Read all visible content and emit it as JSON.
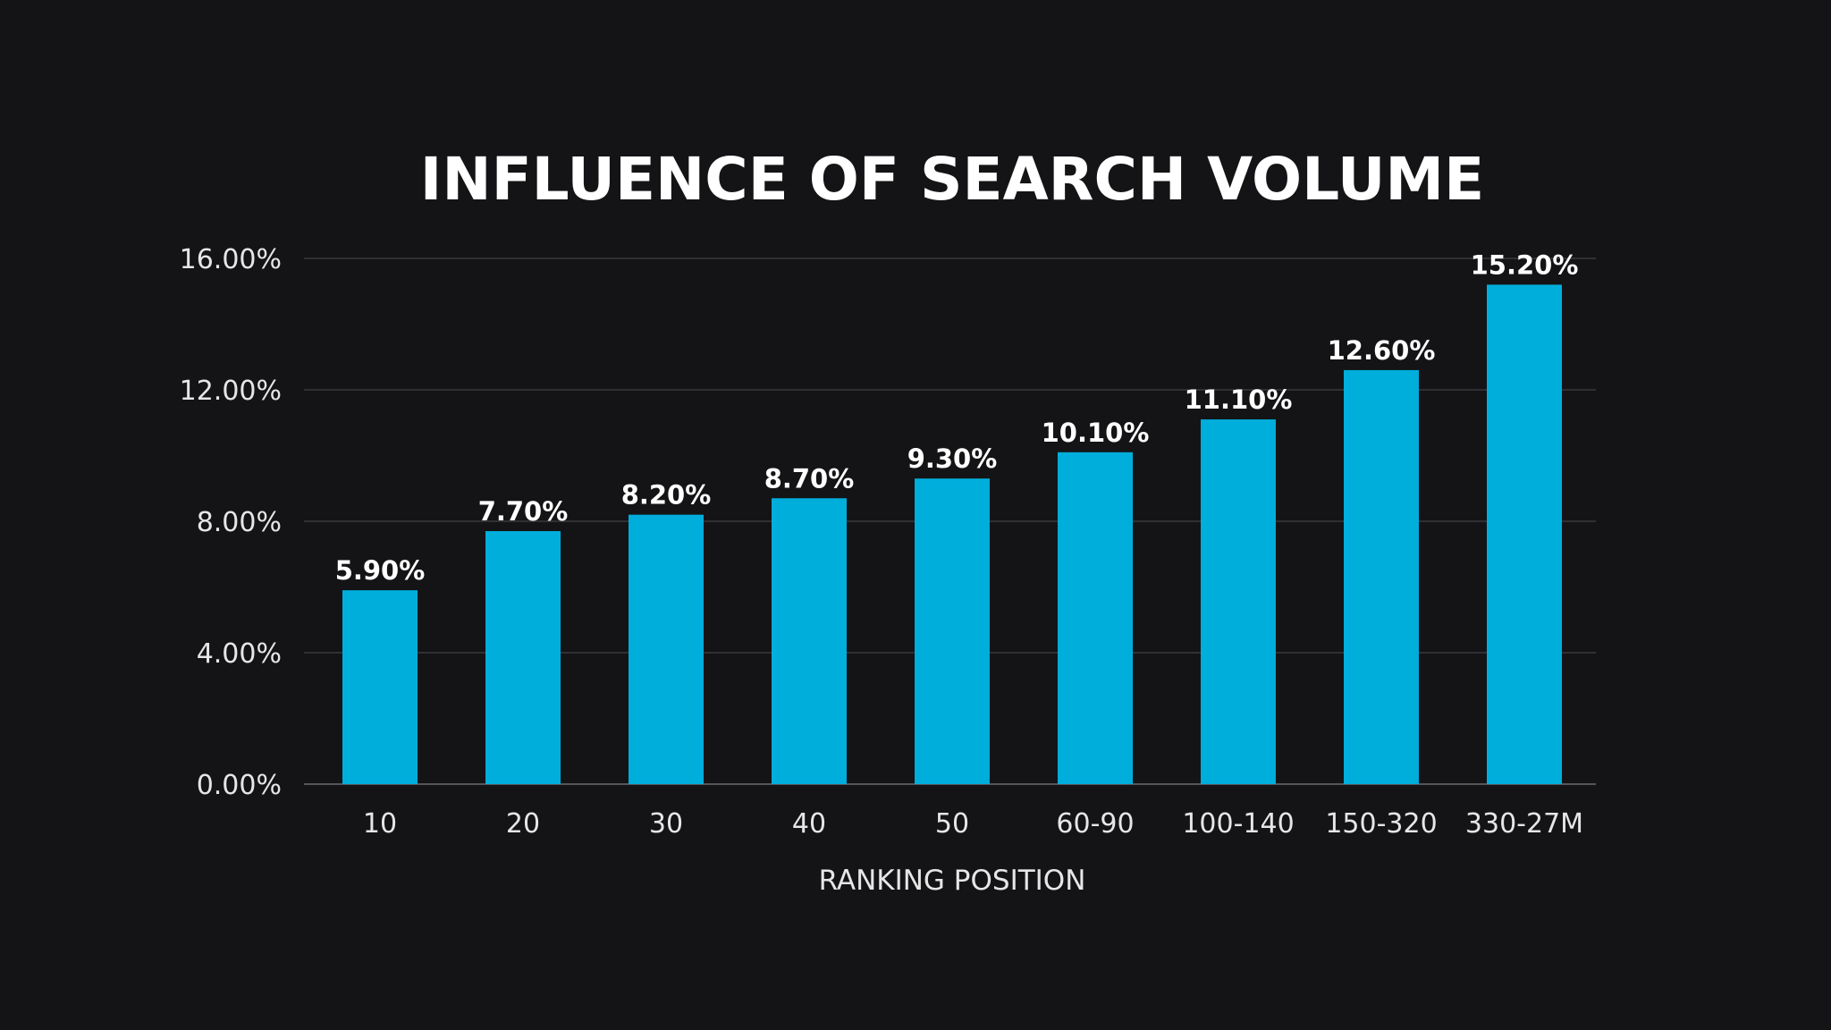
{
  "colors": {
    "background": "#141416",
    "bar": "#00aedc",
    "text": "#ffffff",
    "grid": "#3a3a3e"
  },
  "chart_data": {
    "type": "bar",
    "title": "INFLUENCE OF SEARCH VOLUME",
    "xlabel": "RANKING POSITION",
    "ylabel": "",
    "categories": [
      "10",
      "20",
      "30",
      "40",
      "50",
      "60-90",
      "100-140",
      "150-320",
      "330-27M"
    ],
    "values": [
      5.9,
      7.7,
      8.2,
      8.7,
      9.3,
      10.1,
      11.1,
      12.6,
      15.2
    ],
    "value_labels": [
      "5.90%",
      "7.70%",
      "8.20%",
      "8.70%",
      "9.30%",
      "10.10%",
      "11.10%",
      "12.60%",
      "15.20%"
    ],
    "ylim": [
      0,
      16
    ],
    "yticks": [
      0,
      4,
      8,
      12,
      16
    ],
    "ytick_labels": [
      "0.00%",
      "4.00%",
      "8.00%",
      "12.00%",
      "16.00%"
    ],
    "grid": true,
    "legend": "none"
  }
}
